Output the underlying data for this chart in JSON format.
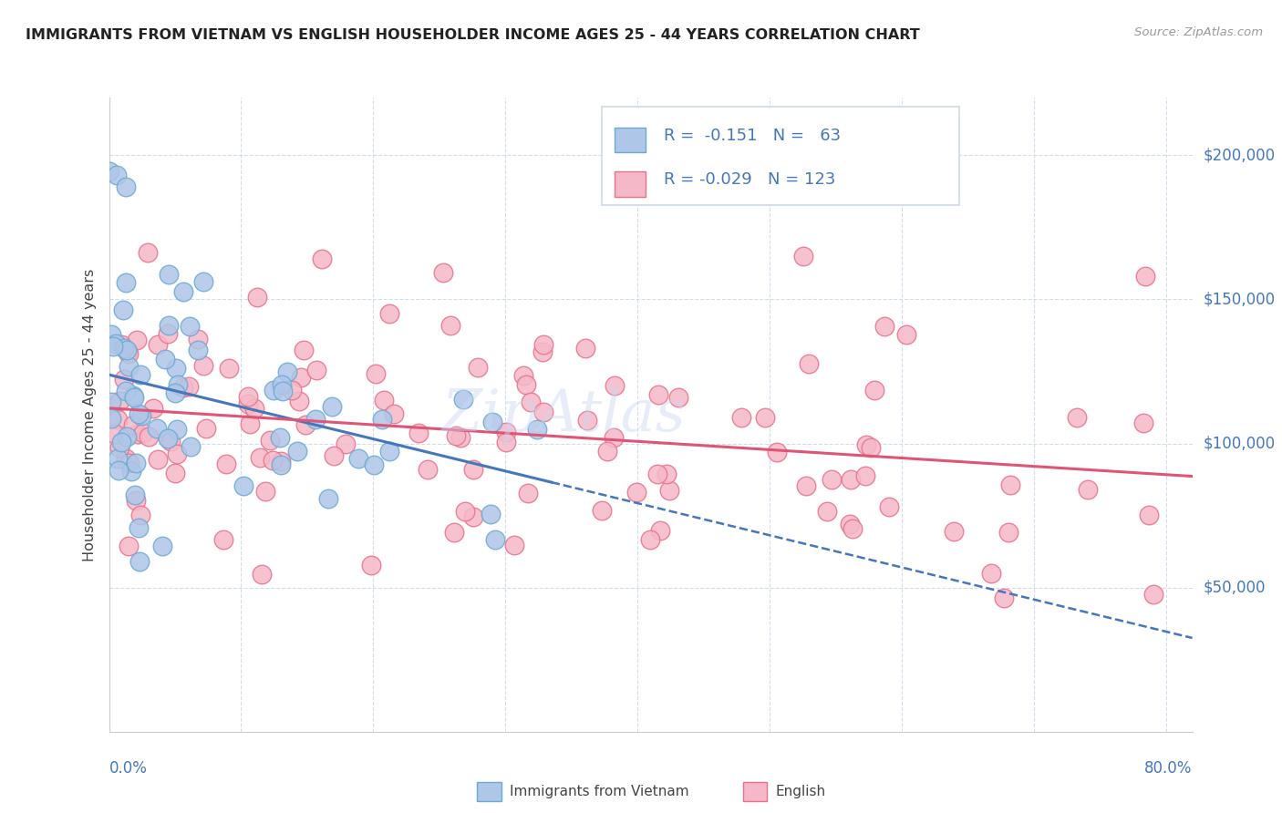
{
  "title": "IMMIGRANTS FROM VIETNAM VS ENGLISH HOUSEHOLDER INCOME AGES 25 - 44 YEARS CORRELATION CHART",
  "source": "Source: ZipAtlas.com",
  "ylabel": "Householder Income Ages 25 - 44 years",
  "ytick_labels": [
    "$50,000",
    "$100,000",
    "$150,000",
    "$200,000"
  ],
  "ytick_values": [
    50000,
    100000,
    150000,
    200000
  ],
  "ylim": [
    0,
    220000
  ],
  "xlim": [
    0.0,
    0.82
  ],
  "color_vietnam_fill": "#aec6e8",
  "color_vietnam_edge": "#6aaad4",
  "color_english_fill": "#f5b8c8",
  "color_english_edge": "#e8728a",
  "color_vietnam_line": "#4477bb",
  "color_english_line": "#e05575",
  "watermark": "ZipAtlas",
  "legend_box_color": "#e8eef8",
  "legend_border_color": "#c0cce0"
}
